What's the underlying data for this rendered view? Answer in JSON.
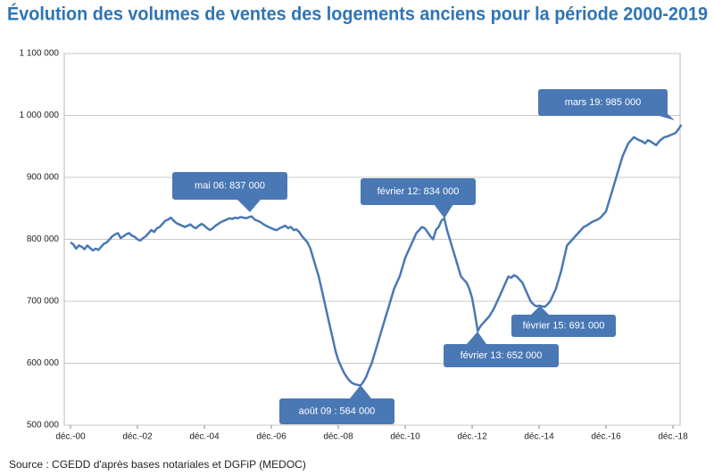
{
  "chart_data": {
    "type": "line",
    "title": "Évolution des volumes de ventes des logements anciens pour la période 2000-2019",
    "source": "Source : CGEDD d'après bases notariales et DGFiP (MEDOC)",
    "categories": [
      "déc.-00",
      null,
      null,
      null,
      null,
      null,
      null,
      null,
      null,
      null,
      null,
      null,
      null,
      null,
      null,
      null,
      null,
      null,
      null,
      null,
      null,
      null,
      null,
      null,
      "déc.-02",
      null,
      null,
      null,
      null,
      null,
      null,
      null,
      null,
      null,
      null,
      null,
      null,
      null,
      null,
      null,
      null,
      null,
      null,
      null,
      null,
      null,
      null,
      null,
      "déc.-04",
      null,
      null,
      null,
      null,
      null,
      null,
      null,
      null,
      null,
      null,
      null,
      null,
      null,
      null,
      null,
      null,
      null,
      null,
      null,
      null,
      null,
      null,
      null,
      "déc.-06",
      null,
      null,
      null,
      null,
      null,
      null,
      null,
      null,
      null,
      null,
      null,
      null,
      null,
      null,
      null,
      null,
      null,
      null,
      null,
      null,
      null,
      null,
      null,
      "déc.-08",
      null,
      null,
      null,
      null,
      null,
      null,
      null,
      null,
      null,
      null,
      null,
      null,
      null,
      null,
      null,
      null,
      null,
      null,
      null,
      null,
      null,
      null,
      null,
      "déc.-10",
      null,
      null,
      null,
      null,
      null,
      null,
      null,
      null,
      null,
      null,
      null,
      null,
      null,
      null,
      null,
      null,
      null,
      null,
      null,
      null,
      null,
      null,
      null,
      "déc.-12",
      null,
      null,
      null,
      null,
      null,
      null,
      null,
      null,
      null,
      null,
      null,
      null,
      null,
      null,
      null,
      null,
      null,
      null,
      null,
      null,
      null,
      null,
      null,
      "déc.-14",
      null,
      null,
      null,
      null,
      null,
      null,
      null,
      null,
      null,
      null,
      null,
      null,
      null,
      null,
      null,
      null,
      null,
      null,
      null,
      null,
      null,
      null,
      null,
      "déc.-16",
      null,
      null,
      null,
      null,
      null,
      null,
      null,
      null,
      null,
      null,
      null,
      null,
      null,
      null,
      null,
      null,
      null,
      null,
      null,
      null,
      null,
      null,
      null,
      "déc.-18",
      null,
      null,
      null
    ],
    "series": [
      {
        "name": "Volumes de ventes",
        "color": "#4a78b5",
        "values": [
          795000,
          792000,
          785000,
          790000,
          788000,
          784000,
          790000,
          786000,
          782000,
          785000,
          783000,
          788000,
          793000,
          795000,
          800000,
          805000,
          808000,
          810000,
          802000,
          805000,
          808000,
          810000,
          806000,
          804000,
          800000,
          798000,
          802000,
          805000,
          810000,
          815000,
          812000,
          818000,
          820000,
          825000,
          830000,
          832000,
          835000,
          830000,
          826000,
          824000,
          822000,
          820000,
          822000,
          824000,
          820000,
          818000,
          822000,
          825000,
          822000,
          818000,
          815000,
          818000,
          822000,
          825000,
          828000,
          830000,
          832000,
          834000,
          833000,
          835000,
          834000,
          836000,
          835000,
          834000,
          836000,
          837000,
          832000,
          830000,
          828000,
          825000,
          822000,
          820000,
          818000,
          816000,
          815000,
          818000,
          820000,
          822000,
          818000,
          820000,
          815000,
          816000,
          812000,
          805000,
          800000,
          795000,
          785000,
          770000,
          755000,
          740000,
          720000,
          700000,
          680000,
          660000,
          640000,
          620000,
          605000,
          595000,
          585000,
          578000,
          572000,
          568000,
          566000,
          565000,
          564000,
          570000,
          578000,
          590000,
          600000,
          615000,
          630000,
          645000,
          660000,
          675000,
          690000,
          705000,
          720000,
          730000,
          740000,
          755000,
          770000,
          780000,
          790000,
          800000,
          810000,
          815000,
          820000,
          818000,
          812000,
          805000,
          800000,
          815000,
          820000,
          830000,
          834000,
          815000,
          800000,
          785000,
          770000,
          755000,
          740000,
          735000,
          730000,
          720000,
          705000,
          680000,
          652000,
          660000,
          665000,
          670000,
          675000,
          682000,
          690000,
          700000,
          710000,
          720000,
          730000,
          740000,
          738000,
          742000,
          740000,
          735000,
          730000,
          720000,
          710000,
          700000,
          695000,
          692000,
          693000,
          692000,
          691000,
          695000,
          700000,
          710000,
          720000,
          735000,
          750000,
          770000,
          790000,
          795000,
          800000,
          805000,
          810000,
          815000,
          820000,
          822000,
          825000,
          828000,
          830000,
          832000,
          835000,
          840000,
          845000,
          860000,
          875000,
          890000,
          905000,
          920000,
          935000,
          945000,
          955000,
          960000,
          965000,
          962000,
          960000,
          958000,
          955000,
          960000,
          958000,
          955000,
          952000,
          958000,
          962000,
          965000,
          966000,
          968000,
          970000,
          972000,
          978000,
          985000
        ]
      }
    ],
    "ylim": [
      500000,
      1100000
    ],
    "yticks": [
      {
        "value": 500000,
        "label": "500 000"
      },
      {
        "value": 600000,
        "label": "600 000"
      },
      {
        "value": 700000,
        "label": "700 000"
      },
      {
        "value": 800000,
        "label": "800 000"
      },
      {
        "value": 900000,
        "label": "900 000"
      },
      {
        "value": 1000000,
        "label": "1 000 000"
      },
      {
        "value": 1100000,
        "label": "1 100 000"
      }
    ],
    "grid": true,
    "annotations": [
      "mai 06: 837 000",
      "août 09 : 564 000",
      "février 12: 834 000",
      "février 13: 652 000",
      "février 15: 691 000",
      "mars 19: 985 000"
    ]
  }
}
